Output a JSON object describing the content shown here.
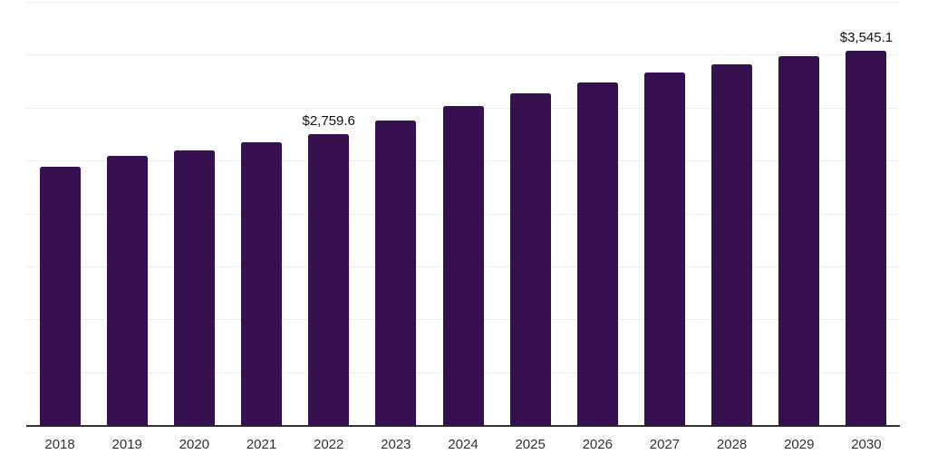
{
  "chart_data": {
    "type": "bar",
    "title": "",
    "xlabel": "",
    "ylabel": "",
    "categories": [
      "2018",
      "2019",
      "2020",
      "2021",
      "2022",
      "2023",
      "2024",
      "2025",
      "2026",
      "2027",
      "2028",
      "2029",
      "2030"
    ],
    "values": [
      2450,
      2555,
      2605,
      2680,
      2759.6,
      2890,
      3020,
      3140,
      3245,
      3340,
      3420,
      3495,
      3545.1
    ],
    "data_labels": {
      "2022": "$2,759.6",
      "2030": "$3,545.1"
    },
    "ylim": [
      0,
      4000
    ],
    "gridline_step": 500,
    "grid": "horizontal-only",
    "legend": "none",
    "y_tick_labels_visible": false,
    "bar_color": "#36114F",
    "axis_color": "#333333",
    "gridline_color": "#efefef",
    "data_label_color": "#111111",
    "tick_label_color": "#333333",
    "background_color": "#ffffff"
  }
}
